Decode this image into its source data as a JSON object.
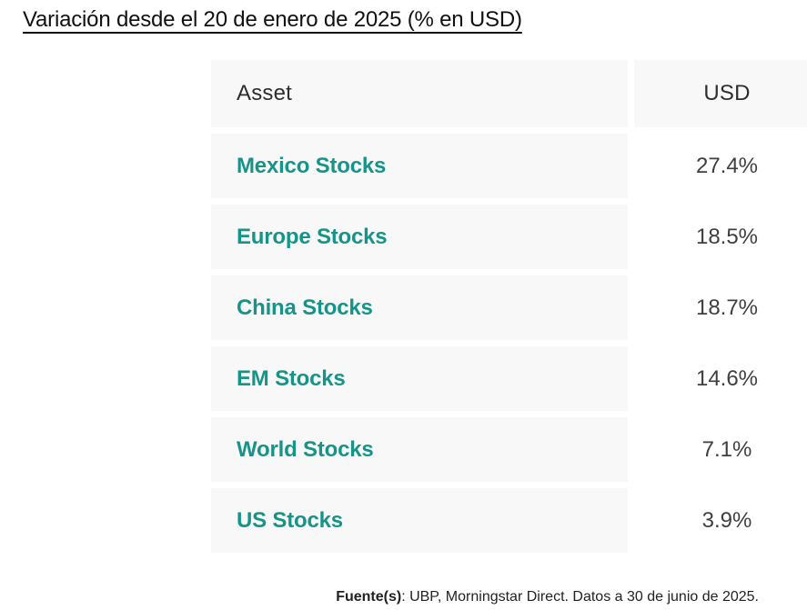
{
  "title": "Variación desde el 20 de enero de 2025 (% en USD)",
  "table": {
    "columns": [
      "Asset",
      "USD"
    ],
    "rows": [
      {
        "asset": "Mexico Stocks",
        "usd": "27.4%"
      },
      {
        "asset": "Europe Stocks",
        "usd": "18.5%"
      },
      {
        "asset": "China Stocks",
        "usd": "18.7%"
      },
      {
        "asset": "EM Stocks",
        "usd": "14.6%"
      },
      {
        "asset": "World Stocks",
        "usd": "7.1%"
      },
      {
        "asset": "US Stocks",
        "usd": "3.9%"
      }
    ]
  },
  "footer": {
    "label": "Fuente(s)",
    "text": ": UBP, Morningstar Direct. Datos a 30 de junio de 2025."
  },
  "colors": {
    "asset_text": "#16948a",
    "value_text": "#3f3f3f",
    "header_text": "#2e2e2e",
    "cell_bg": "#f8f8f8",
    "title_text": "#111111"
  },
  "chart_data": {
    "type": "table",
    "title": "Variación desde el 20 de enero de 2025 (% en USD)",
    "columns": [
      "Asset",
      "USD"
    ],
    "categories": [
      "Mexico Stocks",
      "Europe Stocks",
      "China Stocks",
      "EM Stocks",
      "World Stocks",
      "US Stocks"
    ],
    "values": [
      27.4,
      18.5,
      18.7,
      14.6,
      7.1,
      3.9
    ],
    "unit": "%",
    "source": "Fuente(s): UBP, Morningstar Direct. Datos a 30 de junio de 2025."
  }
}
